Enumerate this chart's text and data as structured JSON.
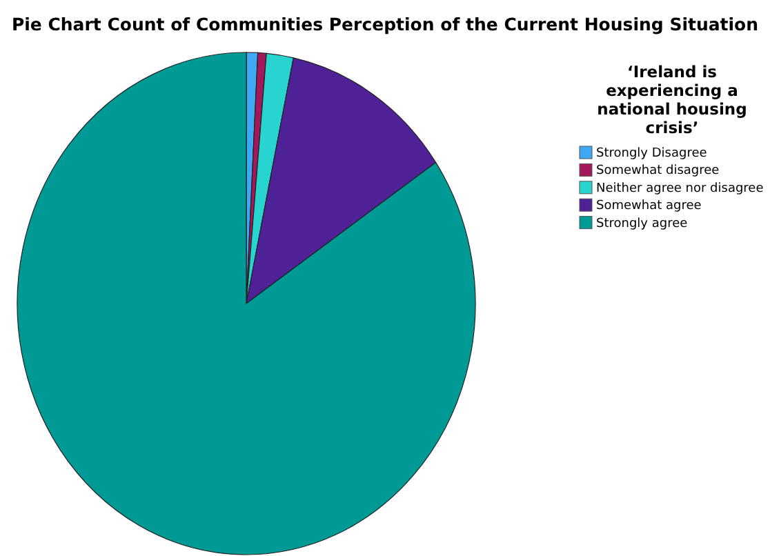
{
  "chart_data": {
    "type": "pie",
    "title": "Pie Chart Count of Communities Perception of the Current Housing Situation",
    "legend_title": "‘Ireland is experiencing a national housing crisis’",
    "legend": "top right",
    "categories": [
      "Strongly Disagree",
      "Somewhat disagree",
      "Neither agree nor disagree",
      "Somewhat agree",
      "Strongly agree"
    ],
    "values": [
      0.8,
      0.6,
      1.9,
      12.2,
      84.5
    ],
    "colors": [
      "#3ea8f5",
      "#a3185a",
      "#27d4d0",
      "#4f2196",
      "#009a96"
    ]
  }
}
